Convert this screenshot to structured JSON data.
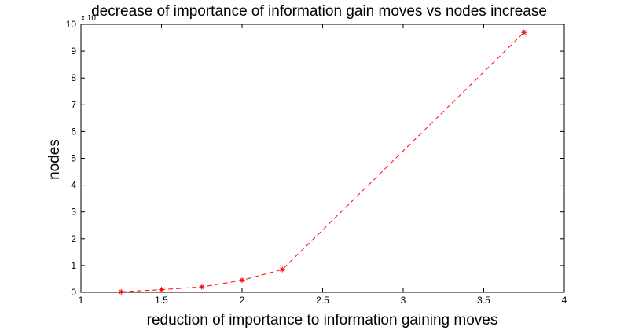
{
  "chart_data": {
    "type": "line",
    "title": "decrease of importance of information gain moves vs nodes increase",
    "xlabel": "reduction of importance to information gaining moves",
    "ylabel": "nodes",
    "y_exponent_label": "x 10",
    "xlim": [
      1,
      4
    ],
    "ylim": [
      0,
      10
    ],
    "x_ticks": [
      "1",
      "1.5",
      "2",
      "2.5",
      "3",
      "3.5",
      "4"
    ],
    "y_ticks": [
      "0",
      "1",
      "2",
      "3",
      "4",
      "5",
      "6",
      "7",
      "8",
      "9",
      "10"
    ],
    "grid": false,
    "series": [
      {
        "x": [
          1.25,
          1.5,
          1.75,
          2.0,
          2.25,
          3.75
        ],
        "y": [
          0.02,
          0.1,
          0.2,
          0.45,
          0.85,
          9.7
        ],
        "color": "#ff0000",
        "line_style": "dashed",
        "marker": "asterisk"
      }
    ]
  }
}
